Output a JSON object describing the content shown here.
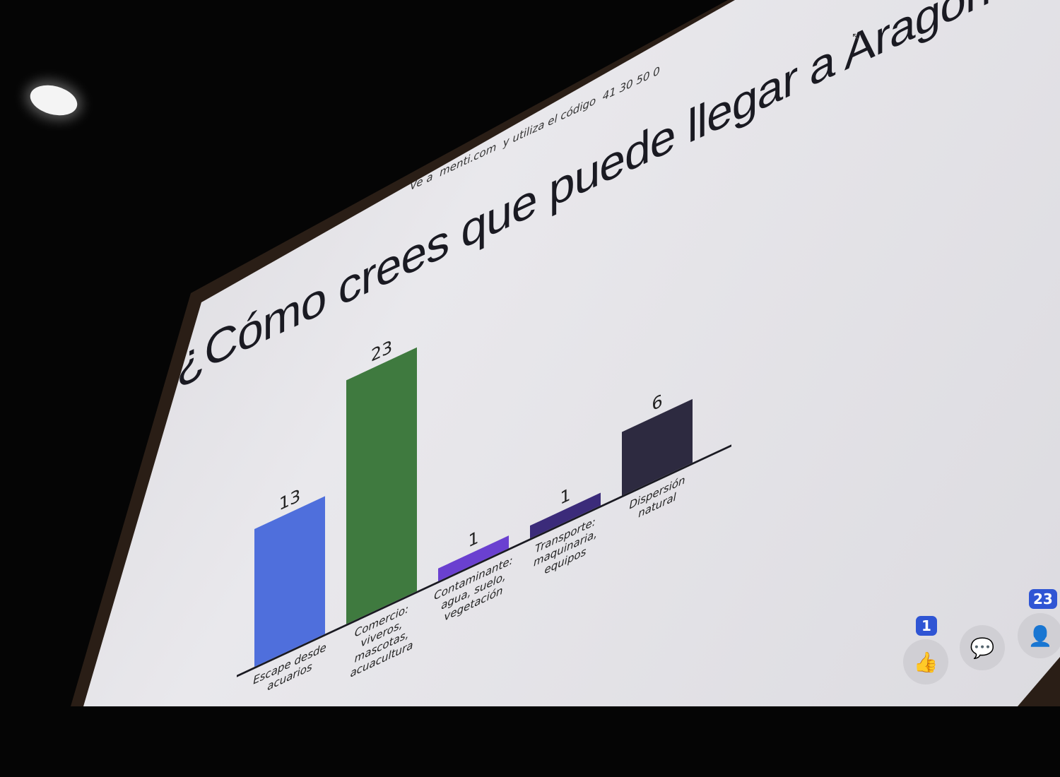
{
  "join_instruction": "Ve a  menti.com  y utiliza el código  41 30 50 0",
  "chart_data": {
    "type": "bar",
    "title": "¿Cómo crees que puede llegar a Aragón?",
    "categories": [
      "Escape desde acuarios",
      "Comercio: viveros, mascotas, acuacultura",
      "Contaminante: agua, suelo, vegetación",
      "Transporte: maquinaria, equipos",
      "Dispersión natural"
    ],
    "values": [
      13,
      23,
      1,
      1,
      6
    ],
    "colors": [
      "#4f6fdc",
      "#3f7a3f",
      "#6a40d0",
      "#3b2b7a",
      "#2d2a40"
    ],
    "grid": false
  },
  "reactions": {
    "likes_count": "1",
    "participants_count": "23",
    "icons": [
      "thumbs-up-icon",
      "comment-icon",
      "person-icon"
    ]
  }
}
